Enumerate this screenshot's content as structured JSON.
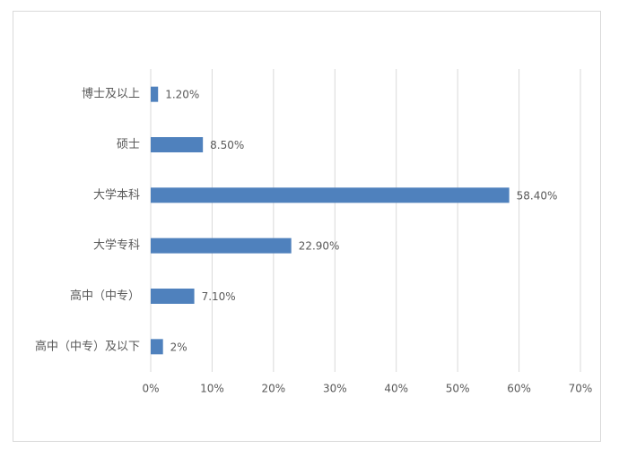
{
  "chart_data": {
    "type": "bar",
    "orientation": "horizontal",
    "categories": [
      "博士及以上",
      "硕士",
      "大学本科",
      "大学专科",
      "高中（中专）",
      "高中（中专）及以下"
    ],
    "values": [
      1.2,
      8.5,
      58.4,
      22.9,
      7.1,
      2
    ],
    "value_labels": [
      "1.20%",
      "8.50%",
      "58.40%",
      "22.90%",
      "7.10%",
      "2%"
    ],
    "color": "#4f81bd",
    "xlim": [
      0,
      70
    ],
    "xticks": [
      {
        "value": 0,
        "label": "0%"
      },
      {
        "value": 10,
        "label": "10%"
      },
      {
        "value": 20,
        "label": "20%"
      },
      {
        "value": 30,
        "label": "30%"
      },
      {
        "value": 40,
        "label": "40%"
      },
      {
        "value": 50,
        "label": "50%"
      },
      {
        "value": 60,
        "label": "60%"
      },
      {
        "value": 70,
        "label": "70%"
      }
    ],
    "grid": true
  }
}
